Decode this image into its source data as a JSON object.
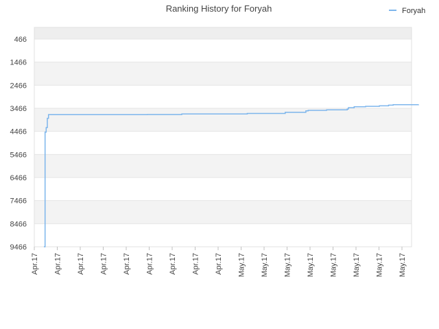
{
  "chart_data": {
    "type": "line",
    "title": "Ranking History for Foryah",
    "xlabel": "",
    "ylabel": "",
    "legend_position": "top-right",
    "grid": true,
    "y_reversed": true,
    "ylim": [
      9466,
      466
    ],
    "y_ticks": [
      466,
      1466,
      2466,
      3466,
      4466,
      5466,
      6466,
      7466,
      8466,
      9466
    ],
    "x_tick_labels": [
      "Apr.17",
      "Apr.17",
      "Apr.17",
      "Apr.17",
      "Apr.17",
      "Apr.17",
      "Apr.17",
      "Apr.17",
      "Apr.17",
      "May.17",
      "May.17",
      "May.17",
      "May.17",
      "May.17",
      "May.17",
      "May.17",
      "May.17"
    ],
    "series": [
      {
        "name": "Foryah",
        "color": "#7cb5ec",
        "x": [
          0.0,
          0.05,
          0.1,
          0.15,
          0.2,
          3.0,
          4.5,
          5.85,
          6.0,
          8.8,
          8.85,
          10.0,
          10.5,
          11.4,
          11.5,
          12.3,
          13.2,
          13.25,
          13.5,
          14.0,
          14.6,
          15.0,
          15.2,
          16.3
        ],
        "values": [
          9466,
          4500,
          4300,
          3900,
          3740,
          3740,
          3735,
          3735,
          3710,
          3710,
          3690,
          3690,
          3640,
          3580,
          3555,
          3530,
          3500,
          3440,
          3400,
          3380,
          3360,
          3330,
          3310,
          3300
        ]
      }
    ]
  }
}
